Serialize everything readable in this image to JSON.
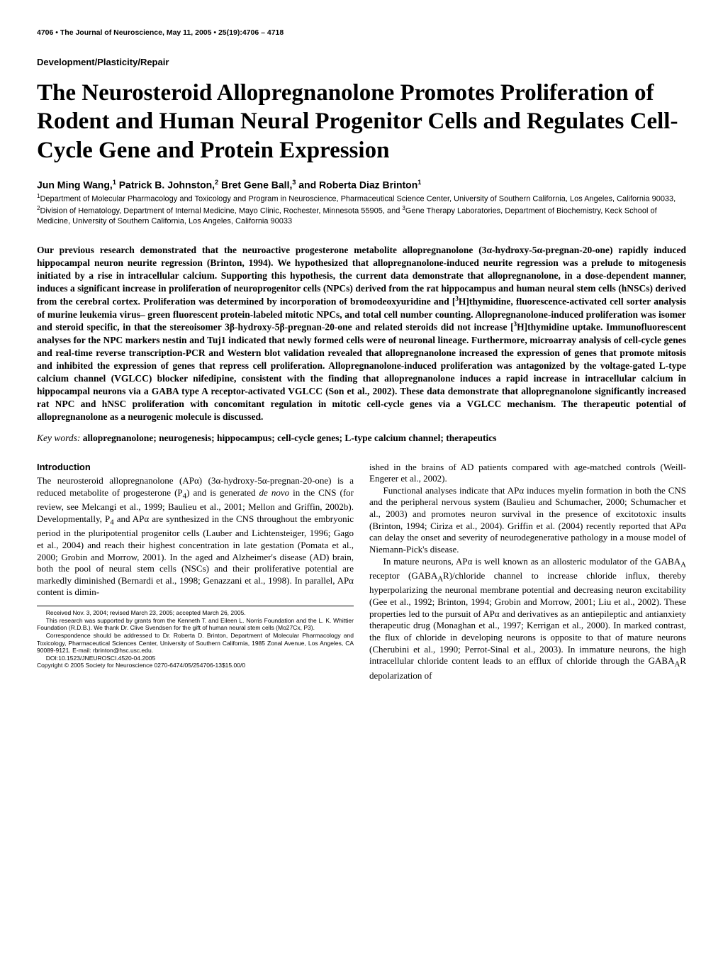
{
  "header": {
    "left": "4706 • The Journal of Neuroscience, May 11, 2005 • 25(19):4706 – 4718"
  },
  "section_label": "Development/Plasticity/Repair",
  "title": "The Neurosteroid Allopregnanolone Promotes Proliferation of Rodent and Human Neural Progenitor Cells and Regulates Cell-Cycle Gene and Protein Expression",
  "authors_html": "Jun Ming Wang,<sup>1</sup> Patrick B. Johnston,<sup>2</sup> Bret Gene Ball,<sup>3</sup> and Roberta Diaz Brinton<sup>1</sup>",
  "affiliations_html": "<sup>1</sup>Department of Molecular Pharmacology and Toxicology and Program in Neuroscience, Pharmaceutical Science Center, University of Southern California, Los Angeles, California 90033, <sup>2</sup>Division of Hematology, Department of Internal Medicine, Mayo Clinic, Rochester, Minnesota 55905, and <sup>3</sup>Gene Therapy Laboratories, Department of Biochemistry, Keck School of Medicine, University of Southern California, Los Angeles, California 90033",
  "abstract_html": "Our previous research demonstrated that the neuroactive progesterone metabolite allopregnanolone (3α-hydroxy-5α-pregnan-20-one) rapidly induced hippocampal neuron neurite regression (Brinton, 1994). We hypothesized that allopregnanolone-induced neurite regression was a prelude to mitogenesis initiated by a rise in intracellular calcium. Supporting this hypothesis, the current data demonstrate that allopregnanolone, in a dose-dependent manner, induces a significant increase in proliferation of neuroprogenitor cells (NPCs) derived from the rat hippocampus and human neural stem cells (hNSCs) derived from the cerebral cortex. Proliferation was determined by incorporation of bromodeoxyuridine and [<sup>3</sup>H]thymidine, fluorescence-activated cell sorter analysis of murine leukemia virus– green fluorescent protein-labeled mitotic NPCs, and total cell number counting. Allopregnanolone-induced proliferation was isomer and steroid specific, in that the stereoisomer 3β-hydroxy-5β-pregnan-20-one and related steroids did not increase [<sup>3</sup>H]thymidine uptake. Immunofluorescent analyses for the NPC markers nestin and Tuj1 indicated that newly formed cells were of neuronal lineage. Furthermore, microarray analysis of cell-cycle genes and real-time reverse transcription-PCR and Western blot validation revealed that allopregnanolone increased the expression of genes that promote mitosis and inhibited the expression of genes that repress cell proliferation. Allopregnanolone-induced proliferation was antagonized by the voltage-gated L-type calcium channel (VGLCC) blocker nifedipine, consistent with the finding that allopregnanolone induces a rapid increase in intracellular calcium in hippocampal neurons via a GABA type A receptor-activated VGLCC (Son et al., 2002). These data demonstrate that allopregnanolone significantly increased rat NPC and hNSC proliferation with concomitant regulation in mitotic cell-cycle genes via a VGLCC mechanism. The therapeutic potential of allopregnanolone as a neurogenic molecule is discussed.",
  "keywords_label": "Key words: ",
  "keywords_content": "allopregnanolone; neurogenesis; hippocampus; cell-cycle genes; L-type calcium channel; therapeutics",
  "intro_heading": "Introduction",
  "col1": {
    "p1_html": "The neurosteroid allopregnanolone (APα) (3α-hydroxy-5α-pregnan-20-one) is a reduced metabolite of progesterone (P<sub>4</sub>) and is generated <i>de novo</i> in the CNS (for review, see Melcangi et al., 1999; Baulieu et al., 2001; Mellon and Griffin, 2002b). Developmentally, P<sub>4</sub> and APα are synthesized in the CNS throughout the embryonic period in the pluripotential progenitor cells (Lauber and Lichtensteiger, 1996; Gago et al., 2004) and reach their highest concentration in late gestation (Pomata et al., 2000; Grobin and Morrow, 2001). In the aged and Alzheimer's disease (AD) brain, both the pool of neural stem cells (NSCs) and their proliferative potential are markedly diminished (Bernardi et al., 1998; Genazzani et al., 1998). In parallel, APα content is dimin-"
  },
  "col2": {
    "p1": "ished in the brains of AD patients compared with age-matched controls (Weill-Engerer et al., 2002).",
    "p2": "Functional analyses indicate that APα induces myelin formation in both the CNS and the peripheral nervous system (Baulieu and Schumacher, 2000; Schumacher et al., 2003) and promotes neuron survival in the presence of excitotoxic insults (Brinton, 1994; Ciriza et al., 2004). Griffin et al. (2004) recently reported that APα can delay the onset and severity of neurodegenerative pathology in a mouse model of Niemann-Pick's disease.",
    "p3_html": "In mature neurons, APα is well known as an allosteric modulator of the GABA<sub>A</sub> receptor (GABA<sub>A</sub>R)/chloride channel to increase chloride influx, thereby hyperpolarizing the neuronal membrane potential and decreasing neuron excitability (Gee et al., 1992; Brinton, 1994; Grobin and Morrow, 2001; Liu et al., 2002). These properties led to the pursuit of APα and derivatives as an antiepileptic and antianxiety therapeutic drug (Monaghan et al., 1997; Kerrigan et al., 2000). In marked contrast, the flux of chloride in developing neurons is opposite to that of mature neurons (Cherubini et al., 1990; Perrot-Sinal et al., 2003). In immature neurons, the high intracellular chloride content leads to an efflux of chloride through the GABA<sub>A</sub>R depolarization of"
  },
  "footnotes": {
    "f1": "Received Nov. 3, 2004; revised March 23, 2005; accepted March 26, 2005.",
    "f2": "This research was supported by grants from the Kenneth T. and Eileen L. Norris Foundation and the L. K. Whittier Foundation (R.D.B.). We thank Dr. Clive Svendsen for the gift of human neural stem cells (Mo27Cx, P3).",
    "f3": "Correspondence should be addressed to Dr. Roberta D. Brinton, Department of Molecular Pharmacology and Toxicology, Pharmaceutical Sciences Center, University of Southern California, 1985 Zonal Avenue, Los Angeles, CA 90089-9121. E-mail: rbrinton@hsc.usc.edu.",
    "f4": "DOI:10.1523/JNEUROSCI.4520-04.2005",
    "f5": "Copyright © 2005 Society for Neuroscience    0270-6474/05/254706-13$15.00/0"
  }
}
